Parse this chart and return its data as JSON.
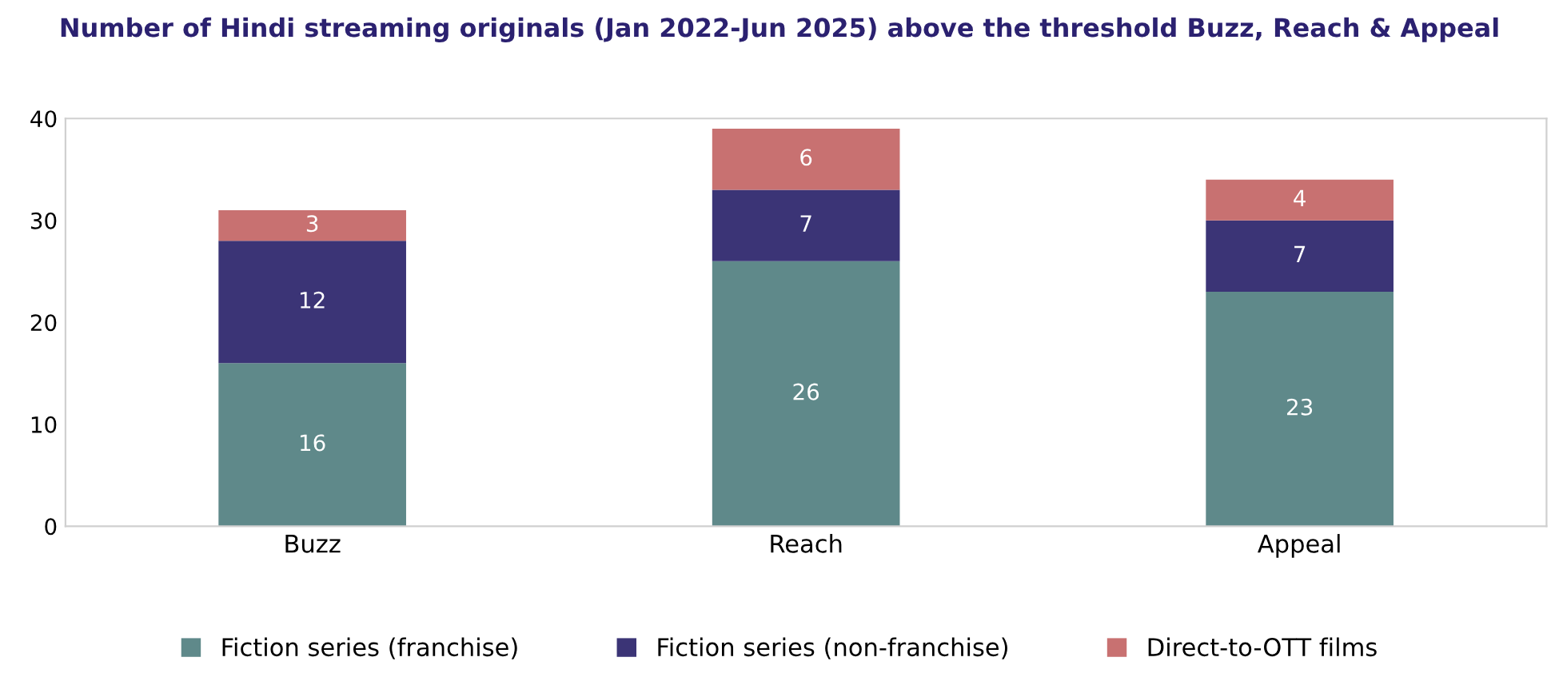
{
  "chart_data": {
    "type": "bar",
    "title": "Number of Hindi streaming originals (Jan 2022-Jun 2025) above the threshold Buzz, Reach & Appeal",
    "categories": [
      "Buzz",
      "Reach",
      "Appeal"
    ],
    "series": [
      {
        "name": "Fiction series (franchise)",
        "color": "#5f898a",
        "values": [
          16,
          26,
          23
        ]
      },
      {
        "name": "Fiction series (non-franchise)",
        "color": "#3b3476",
        "values": [
          12,
          7,
          7
        ]
      },
      {
        "name": "Direct-to-OTT films",
        "color": "#c87171",
        "values": [
          3,
          6,
          4
        ]
      }
    ],
    "stacked": true,
    "ylim": [
      0,
      40
    ],
    "yticks": [
      0,
      10,
      20,
      30,
      40
    ],
    "grid": false,
    "legend": "bottom",
    "data_labels": true
  }
}
